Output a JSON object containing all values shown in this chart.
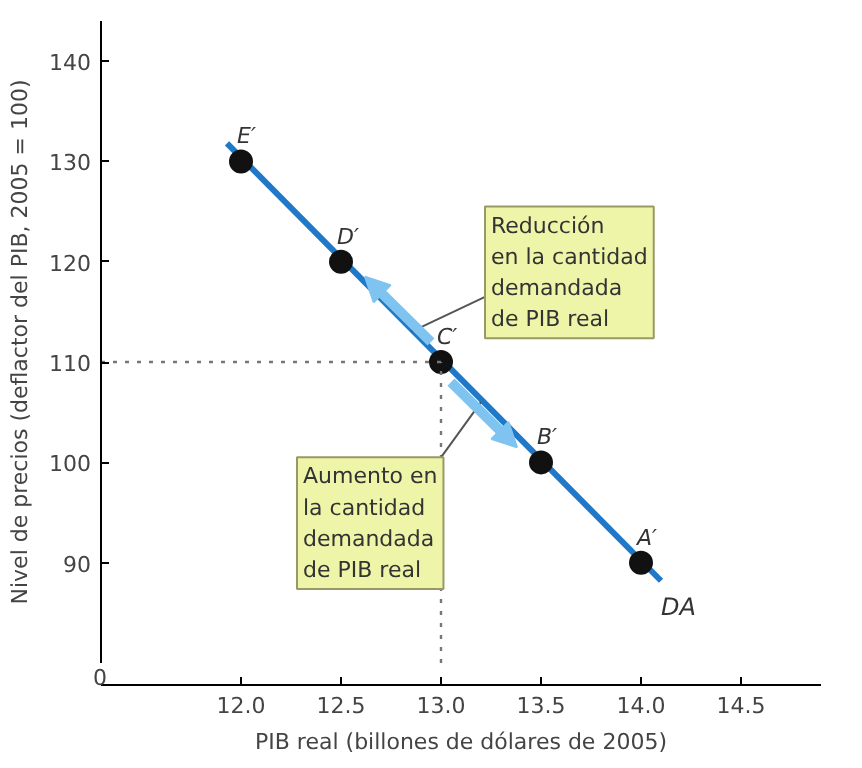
{
  "chart_data": {
    "type": "line",
    "xlabel": "PIB real (billones de dólares de 2005)",
    "ylabel": "Nivel de precios (deflactor del PIB, 2005 = 100)",
    "xlim": [
      11.3,
      14.9
    ],
    "ylim": [
      80,
      144
    ],
    "xticks": [
      {
        "value": 12,
        "label": "12.0"
      },
      {
        "value": 12.5,
        "label": "12.5"
      },
      {
        "value": 13,
        "label": "13.0"
      },
      {
        "value": 13.5,
        "label": "13.5"
      },
      {
        "value": 14,
        "label": "14.0"
      },
      {
        "value": 14.5,
        "label": "14.5"
      }
    ],
    "yticks": [
      90,
      100,
      110,
      120,
      130,
      140
    ],
    "series": [
      {
        "name": "DA",
        "color": "#1f78c8",
        "x": [
          11.93,
          14.1
        ],
        "values": [
          131.8,
          88.2
        ]
      },
      {
        "type": "scatter",
        "color": "#111111",
        "marker": "circle",
        "x": [
          12.0,
          12.5,
          13.0,
          13.5,
          14.0
        ],
        "values": [
          130,
          120,
          110,
          100,
          90
        ]
      },
      {
        "type": "line",
        "color": "#777777",
        "line_style": "dotted",
        "x": [
          11.3,
          13.0
        ],
        "values": [
          110,
          110
        ]
      },
      {
        "type": "line",
        "color": "#777777",
        "line_style": "dotted",
        "x": [
          13.0,
          13.0
        ],
        "values": [
          80,
          110
        ]
      }
    ],
    "annotations": [
      "0",
      {
        "text": "E′",
        "x": 12.0,
        "y": 130
      },
      {
        "text": "D′",
        "x": 12.5,
        "y": 120
      },
      {
        "text": "C′",
        "x": 13.0,
        "y": 110
      },
      {
        "text": "B′",
        "x": 13.5,
        "y": 100
      },
      {
        "text": "A′",
        "x": 14.0,
        "y": 90
      },
      {
        "text": "Reducción\nen la cantidad\ndemandada\nde PIB real",
        "x": 12.85,
        "y": 113
      },
      {
        "text": "Aumento en\nla cantidad\ndemandada\nde PIB real",
        "x": 13.2,
        "y": 106
      }
    ],
    "grid": false
  }
}
